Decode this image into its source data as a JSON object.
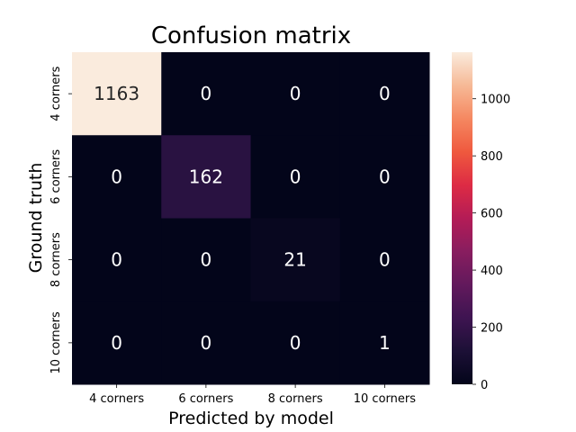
{
  "chart_data": {
    "type": "heatmap",
    "title": "Confusion matrix",
    "xlabel": "Predicted by model",
    "ylabel": "Ground truth",
    "x_categories": [
      "4 corners",
      "6 corners",
      "8 corners",
      "10 corners"
    ],
    "y_categories": [
      "4 corners",
      "6 corners",
      "8 corners",
      "10 corners"
    ],
    "values": [
      [
        1163,
        0,
        0,
        0
      ],
      [
        0,
        162,
        0,
        0
      ],
      [
        0,
        0,
        21,
        0
      ],
      [
        0,
        0,
        0,
        1
      ]
    ],
    "colorbar": {
      "range": [
        0,
        1163
      ],
      "ticks": [
        0,
        200,
        400,
        600,
        800,
        1000
      ],
      "colormap": "rocket"
    },
    "colors": {
      "low": "#03051a",
      "high": "#faebdd",
      "label_light": "#ffffff",
      "label_dark": "#262626"
    }
  }
}
